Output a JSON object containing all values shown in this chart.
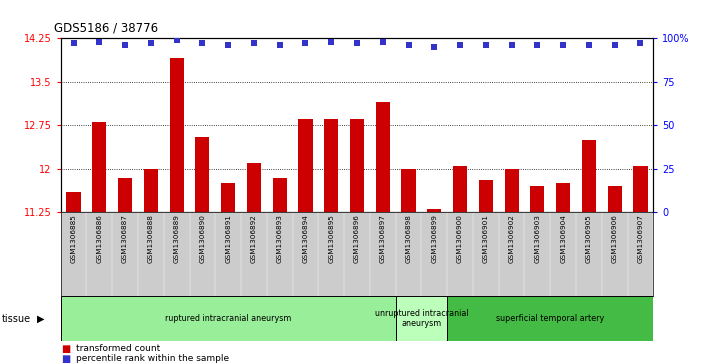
{
  "title": "GDS5186 / 38776",
  "samples": [
    "GSM1306885",
    "GSM1306886",
    "GSM1306887",
    "GSM1306888",
    "GSM1306889",
    "GSM1306890",
    "GSM1306891",
    "GSM1306892",
    "GSM1306893",
    "GSM1306894",
    "GSM1306895",
    "GSM1306896",
    "GSM1306897",
    "GSM1306898",
    "GSM1306899",
    "GSM1306900",
    "GSM1306901",
    "GSM1306902",
    "GSM1306903",
    "GSM1306904",
    "GSM1306905",
    "GSM1306906",
    "GSM1306907"
  ],
  "transformed_count": [
    11.6,
    12.8,
    11.85,
    12.0,
    13.9,
    12.55,
    11.75,
    12.1,
    11.85,
    12.85,
    12.85,
    12.85,
    13.15,
    12.0,
    11.3,
    12.05,
    11.8,
    12.0,
    11.7,
    11.75,
    12.5,
    11.7,
    12.05
  ],
  "percentile_rank": [
    97,
    98,
    96,
    97,
    99,
    97,
    96,
    97,
    96,
    97,
    98,
    97,
    98,
    96,
    95,
    96,
    96,
    96,
    96,
    96,
    96,
    96,
    97
  ],
  "ylim_left": [
    11.25,
    14.25
  ],
  "ylim_right": [
    0,
    100
  ],
  "yticks_left": [
    11.25,
    12.0,
    12.75,
    13.5,
    14.25
  ],
  "ytick_labels_left": [
    "11.25",
    "12",
    "12.75",
    "13.5",
    "14.25"
  ],
  "yticks_right": [
    0,
    25,
    50,
    75,
    100
  ],
  "ytick_labels_right": [
    "0",
    "25",
    "50",
    "75",
    "100%"
  ],
  "bar_color": "#cc0000",
  "dot_color": "#3333cc",
  "group_colors": [
    "#99ee99",
    "#bbffbb",
    "#44bb44"
  ],
  "groups": [
    {
      "label": "ruptured intracranial aneurysm",
      "start": 0,
      "end": 13
    },
    {
      "label": "unruptured intracranial\naneurysm",
      "start": 13,
      "end": 15
    },
    {
      "label": "superficial temporal artery",
      "start": 15,
      "end": 23
    }
  ],
  "tissue_label": "tissue",
  "legend_bar_label": "transformed count",
  "legend_dot_label": "percentile rank within the sample",
  "plot_bg_color": "#ffffff",
  "xtick_bg_color": "#cccccc"
}
